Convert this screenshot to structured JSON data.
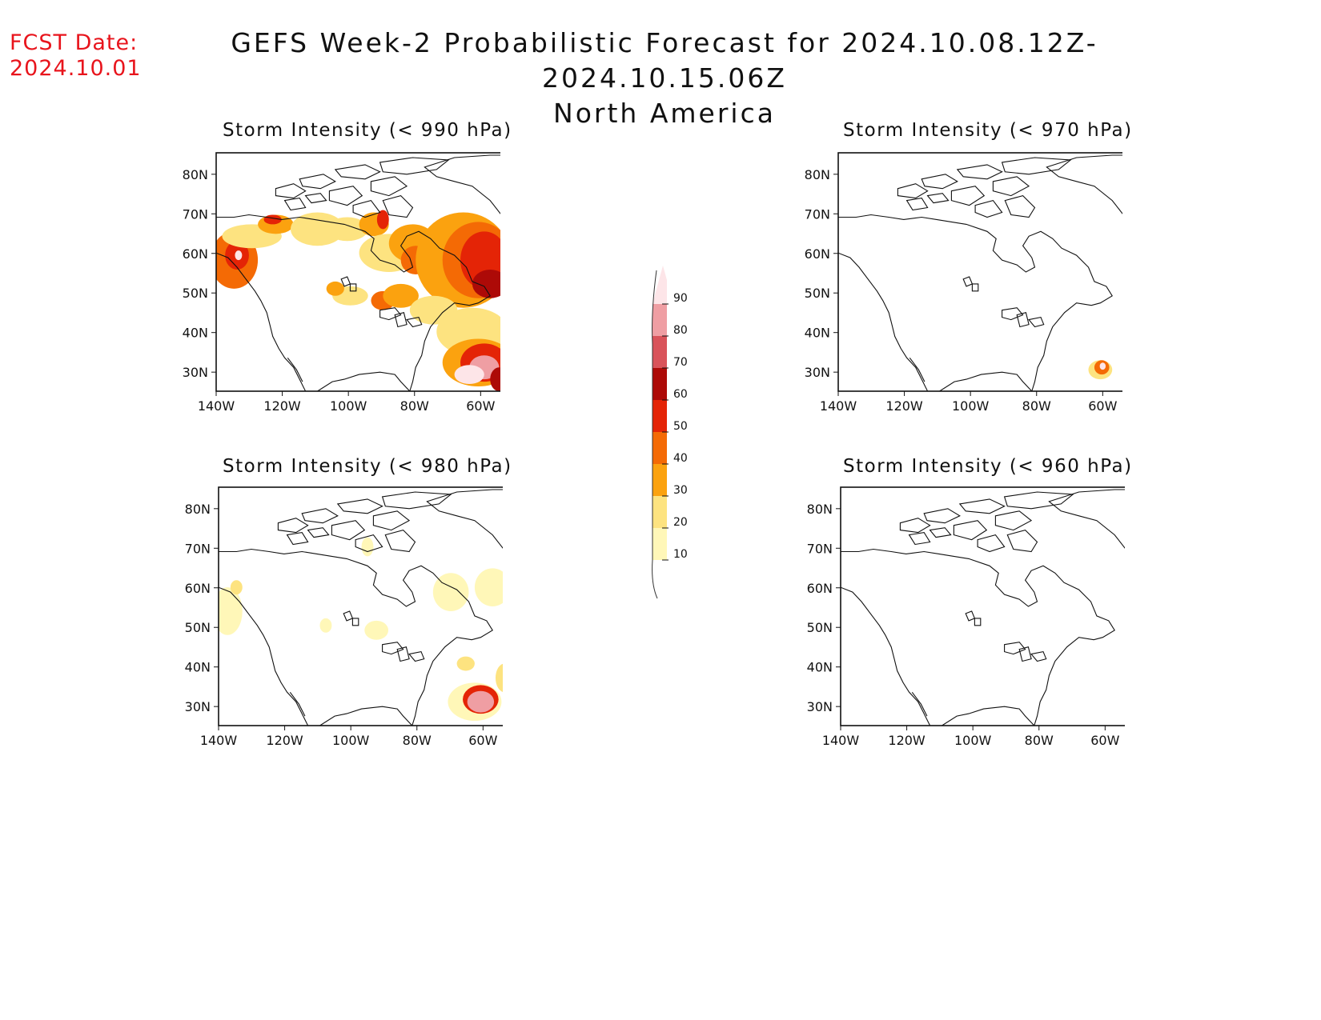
{
  "header": {
    "fcst_label": "FCST Date:",
    "fcst_date": "2024.10.01",
    "title_line1": "GEFS Week-2 Probabilistic Forecast for 2024.10.08.12Z-2024.10.15.06Z",
    "title_line2": "North America"
  },
  "panels": [
    {
      "title": "Storm Intensity (< 990 hPa)"
    },
    {
      "title": "Storm Intensity (< 970 hPa)"
    },
    {
      "title": "Storm Intensity (< 980 hPa)"
    },
    {
      "title": "Storm Intensity (< 960 hPa)"
    }
  ],
  "axes": {
    "lat_labels": [
      "80N",
      "70N",
      "60N",
      "50N",
      "40N",
      "30N"
    ],
    "lon_labels": [
      "140W",
      "120W",
      "100W",
      "80W",
      "60W"
    ]
  },
  "colorbar": {
    "labels": [
      "10",
      "20",
      "30",
      "40",
      "50",
      "60",
      "70",
      "80",
      "90"
    ],
    "colors": [
      "#fff7b8",
      "#fde380",
      "#fba20f",
      "#f46a05",
      "#e42406",
      "#ad0a07",
      "#d9535a",
      "#ef9ea3",
      "#fde5e8"
    ]
  }
}
